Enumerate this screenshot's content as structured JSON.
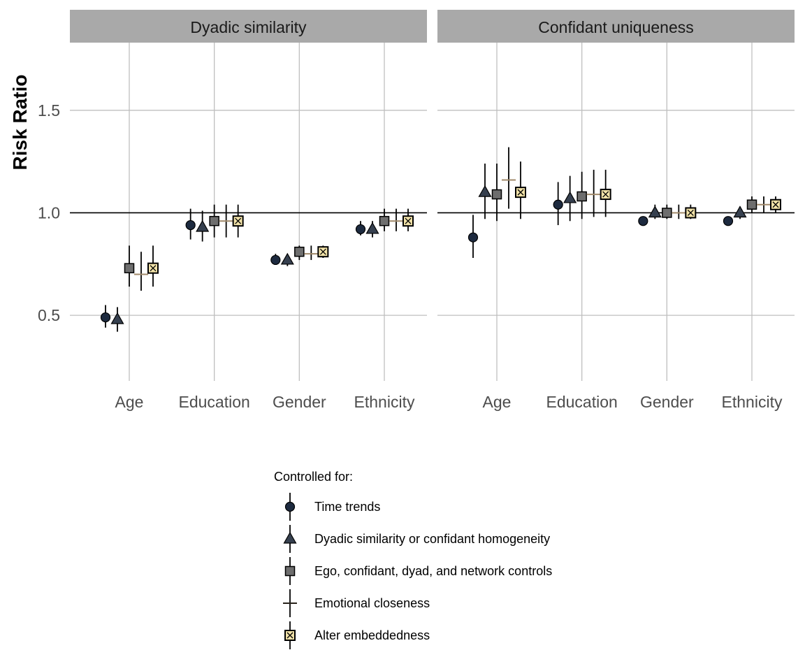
{
  "chart_data": {
    "type": "scatter",
    "ylabel": "Risk Ratio",
    "ylim": [
      0.18,
      1.83
    ],
    "yticks": [
      0.5,
      1.0,
      1.5
    ],
    "ytick_labels": [
      "0.5",
      "1.0",
      "1.5"
    ],
    "reference_line": 1.0,
    "grid": true,
    "categories": [
      "Age",
      "Education",
      "Gender",
      "Ethnicity"
    ],
    "colors": {
      "point_fill": "#1d2a3f",
      "triangle_fill": "#36404f",
      "square_fill": "#6e6e6e",
      "cross_color": "#a0896a",
      "embedded_fill": "#f1e2a8",
      "strip_bg": "#a9a9a9",
      "grid": "#bfbfbf"
    },
    "legend": {
      "title": "Controlled for:",
      "placement": "bottom",
      "entries": [
        {
          "label": "Time trends",
          "shape": "circle"
        },
        {
          "label": "Dyadic similarity or confidant homogeneity",
          "shape": "triangle"
        },
        {
          "label": "Ego, confidant, dyad, and network controls",
          "shape": "square"
        },
        {
          "label": "Emotional closeness",
          "shape": "cross"
        },
        {
          "label": "Alter embeddedness",
          "shape": "boxcross"
        }
      ]
    },
    "panels": [
      {
        "title": "Dyadic similarity",
        "series": [
          {
            "name": "Time trends",
            "values": [
              0.49,
              0.94,
              0.77,
              0.92
            ],
            "lower": [
              0.44,
              0.87,
              0.75,
              0.89
            ],
            "upper": [
              0.55,
              1.02,
              0.8,
              0.96
            ]
          },
          {
            "name": "Dyadic similarity or confidant homogeneity",
            "values": [
              0.48,
              0.93,
              0.77,
              0.92
            ],
            "lower": [
              0.42,
              0.86,
              0.74,
              0.88
            ],
            "upper": [
              0.54,
              1.01,
              0.79,
              0.96
            ]
          },
          {
            "name": "Ego, confidant, dyad, and network controls",
            "values": [
              0.73,
              0.96,
              0.81,
              0.96
            ],
            "lower": [
              0.64,
              0.88,
              0.77,
              0.91
            ],
            "upper": [
              0.84,
              1.04,
              0.84,
              1.02
            ]
          },
          {
            "name": "Emotional closeness",
            "values": [
              0.7,
              0.96,
              0.8,
              0.96
            ],
            "lower": [
              0.62,
              0.88,
              0.77,
              0.91
            ],
            "upper": [
              0.81,
              1.04,
              0.84,
              1.02
            ]
          },
          {
            "name": "Alter embeddedness",
            "values": [
              0.73,
              0.96,
              0.81,
              0.96
            ],
            "lower": [
              0.64,
              0.88,
              0.78,
              0.91
            ],
            "upper": [
              0.84,
              1.04,
              0.84,
              1.02
            ]
          }
        ]
      },
      {
        "title": "Confidant uniqueness",
        "series": [
          {
            "name": "Time trends",
            "values": [
              0.88,
              1.04,
              0.96,
              0.96
            ],
            "lower": [
              0.78,
              0.94,
              0.95,
              0.95
            ],
            "upper": [
              0.99,
              1.15,
              0.97,
              0.97
            ]
          },
          {
            "name": "Dyadic similarity or confidant homogeneity",
            "values": [
              1.1,
              1.07,
              1.0,
              1.0
            ],
            "lower": [
              0.97,
              0.96,
              0.97,
              0.97
            ],
            "upper": [
              1.24,
              1.18,
              1.04,
              1.03
            ]
          },
          {
            "name": "Ego, confidant, dyad, and network controls",
            "values": [
              1.09,
              1.08,
              1.0,
              1.04
            ],
            "lower": [
              0.96,
              0.97,
              0.97,
              1.0
            ],
            "upper": [
              1.24,
              1.2,
              1.04,
              1.08
            ]
          },
          {
            "name": "Emotional closeness",
            "values": [
              1.16,
              1.09,
              1.0,
              1.04
            ],
            "lower": [
              1.02,
              0.98,
              0.97,
              1.0
            ],
            "upper": [
              1.32,
              1.21,
              1.04,
              1.08
            ]
          },
          {
            "name": "Alter embeddedness",
            "values": [
              1.1,
              1.09,
              1.0,
              1.04
            ],
            "lower": [
              0.97,
              0.98,
              0.97,
              1.0
            ],
            "upper": [
              1.25,
              1.21,
              1.04,
              1.08
            ]
          }
        ]
      }
    ]
  }
}
